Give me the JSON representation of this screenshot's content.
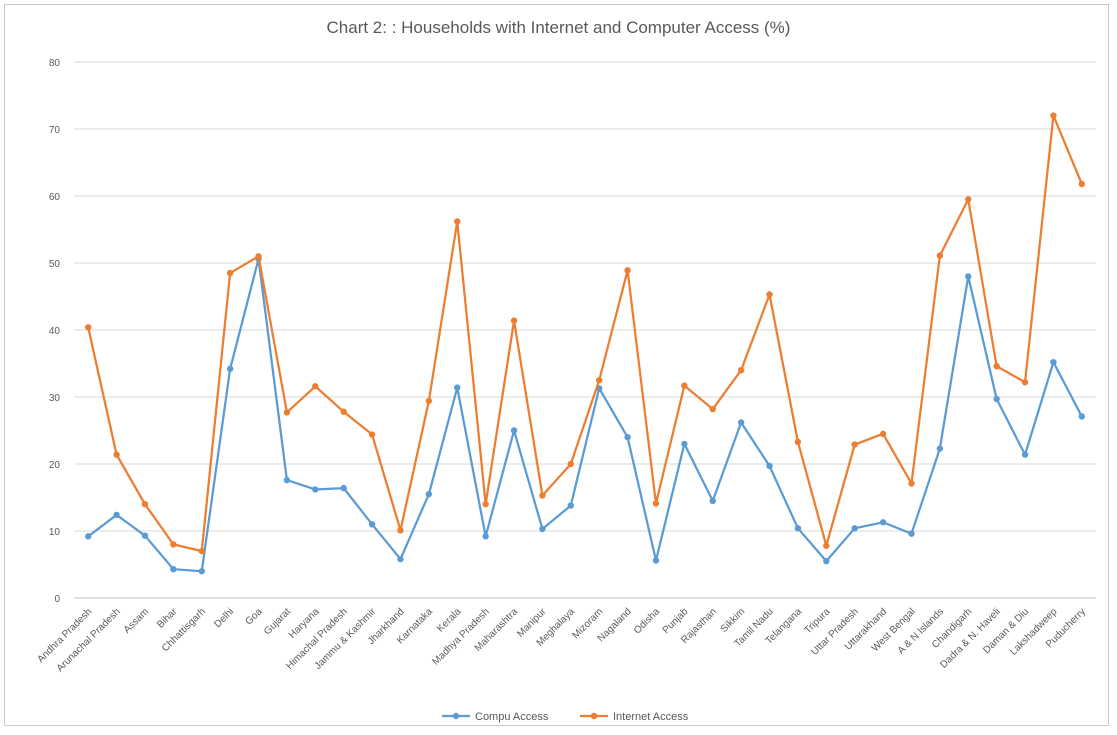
{
  "chart_data": {
    "type": "line",
    "title": "Chart 2: : Households with Internet and Computer Access (%)",
    "xlabel": "",
    "ylabel": "",
    "ylim": [
      0,
      80
    ],
    "yticks": [
      0,
      10,
      20,
      30,
      40,
      50,
      60,
      70,
      80
    ],
    "grid": true,
    "legend_position": "bottom",
    "categories": [
      "Andhra Pradesh",
      "Arunachal Pradesh",
      "Assam",
      "Bihar",
      "Chhattisgarh",
      "Delhi",
      "Goa",
      "Gujarat",
      "Haryana",
      "Himachal Pradesh",
      "Jammu & Kashmir",
      "Jharkhand",
      "Karnataka",
      "Kerala",
      "Madhya Pradesh",
      "Maharashtra",
      "Manipur",
      "Meghalaya",
      "Mizoram",
      "Nagaland",
      "Odisha",
      "Punjab",
      "Rajasthan",
      "Sikkim",
      "Tamil Nadu",
      "Telangana",
      "Tripura",
      "Uttar Pradesh",
      "Uttarakhand",
      "West Bengal",
      "A & N Islands",
      "Chandigarh",
      "Dadra & N. Haveli",
      "Daman & Diu",
      "Lakshadweep",
      "Puducherry"
    ],
    "series": [
      {
        "name": "Compu Access",
        "color": "#5b9bd5",
        "values": [
          9.2,
          12.4,
          9.3,
          4.3,
          4.0,
          34.2,
          50.6,
          17.6,
          16.2,
          16.4,
          11.0,
          5.8,
          15.5,
          31.4,
          9.2,
          25.0,
          10.3,
          13.8,
          31.3,
          24.0,
          5.6,
          23.0,
          14.5,
          26.2,
          19.7,
          10.4,
          5.5,
          10.4,
          11.3,
          9.6,
          22.3,
          48.0,
          29.7,
          21.4,
          35.2,
          27.1
        ]
      },
      {
        "name": "Internet Access",
        "color": "#ed7d31",
        "values": [
          40.4,
          21.4,
          14.0,
          8.0,
          7.0,
          48.5,
          51.0,
          27.7,
          31.6,
          27.8,
          24.4,
          10.1,
          29.4,
          56.2,
          14.0,
          41.4,
          15.3,
          20.0,
          32.5,
          48.9,
          14.1,
          31.7,
          28.2,
          34.0,
          45.3,
          23.3,
          7.8,
          22.9,
          24.5,
          17.1,
          51.1,
          59.5,
          34.6,
          32.2,
          72.0,
          61.8
        ]
      }
    ]
  }
}
